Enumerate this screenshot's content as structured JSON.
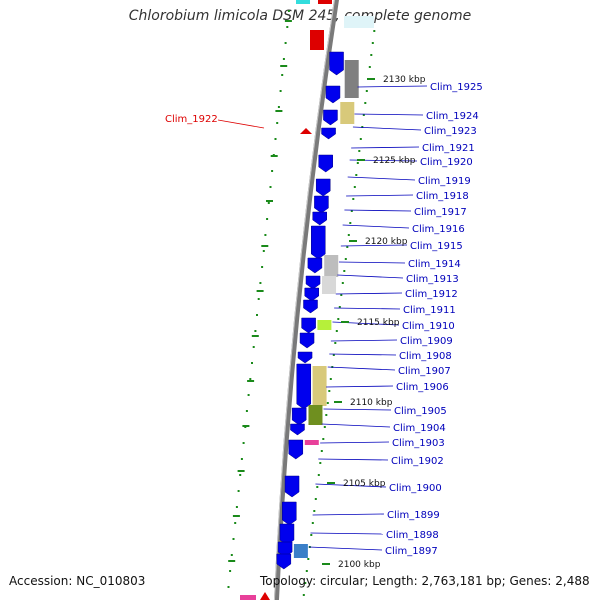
{
  "title": "Chlorobium limicola DSM 245, complete genome",
  "accession": "Accession: NC_010803",
  "summary": "Topology: circular; Length: 2,763,181 bp; Genes: 2,488",
  "colors": {
    "backbone": "#888888",
    "forward_gene": "#0000ee",
    "ruler": "#1a8a1a",
    "label": "#0000bb",
    "highlight": "#dd0000",
    "gray_feature": "#808080",
    "tan_feature": "#d8c97a",
    "olive_feature": "#6f8f1f",
    "lime_feature": "#b6f03a",
    "pink_feature": "#e8409a"
  },
  "ruler_labels": [
    "2130 kbp",
    "2125 kbp",
    "2120 kbp",
    "2115 kbp",
    "2110 kbp",
    "2105 kbp",
    "2100 kbp"
  ],
  "gene_labels": [
    "Clim_1925",
    "Clim_1924",
    "Clim_1923",
    "Clim_1921",
    "Clim_1920",
    "Clim_1919",
    "Clim_1918",
    "Clim_1917",
    "Clim_1916",
    "Clim_1915",
    "Clim_1914",
    "Clim_1913",
    "Clim_1912",
    "Clim_1911",
    "Clim_1910",
    "Clim_1909",
    "Clim_1908",
    "Clim_1907",
    "Clim_1906",
    "Clim_1905",
    "Clim_1904",
    "Clim_1903",
    "Clim_1902",
    "Clim_1900",
    "Clim_1899",
    "Clim_1898",
    "Clim_1897"
  ],
  "highlight_label": "Clim_1922"
}
